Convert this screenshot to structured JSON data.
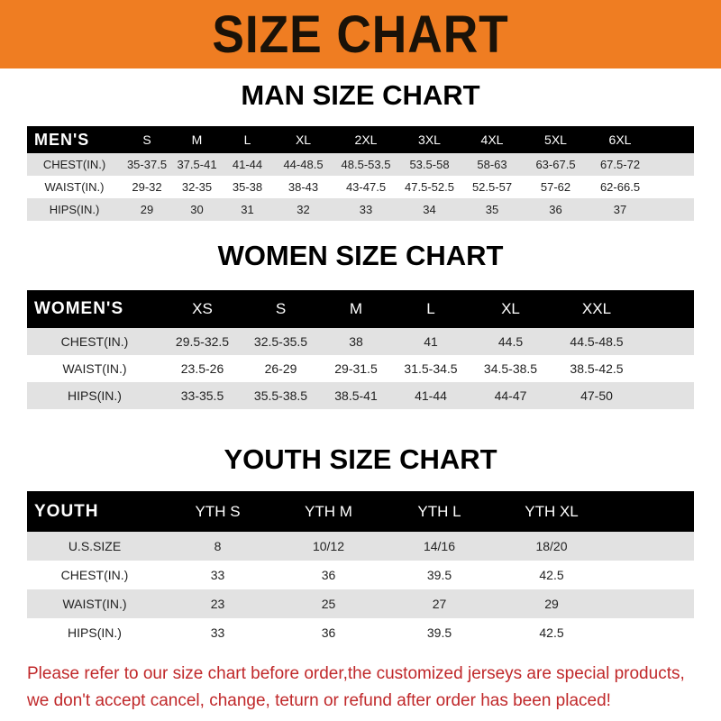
{
  "banner": {
    "title": "SIZE CHART"
  },
  "men": {
    "title": "MAN SIZE CHART",
    "header": [
      "MEN'S",
      "S",
      "M",
      "L",
      "XL",
      "2XL",
      "3XL",
      "4XL",
      "5XL",
      "6XL"
    ],
    "rows": [
      [
        "CHEST(IN.)",
        "35-37.5",
        "37.5-41",
        "41-44",
        "44-48.5",
        "48.5-53.5",
        "53.5-58",
        "58-63",
        "63-67.5",
        "67.5-72"
      ],
      [
        "WAIST(IN.)",
        "29-32",
        "32-35",
        "35-38",
        "38-43",
        "43-47.5",
        "47.5-52.5",
        "52.5-57",
        "57-62",
        "62-66.5"
      ],
      [
        "HIPS(IN.)",
        "29",
        "30",
        "31",
        "32",
        "33",
        "34",
        "35",
        "36",
        "37"
      ]
    ]
  },
  "women": {
    "title": "WOMEN SIZE CHART",
    "header": [
      "WOMEN'S",
      "XS",
      "S",
      "M",
      "L",
      "XL",
      "XXL"
    ],
    "rows": [
      [
        "CHEST(IN.)",
        "29.5-32.5",
        "32.5-35.5",
        "38",
        "41",
        "44.5",
        "44.5-48.5"
      ],
      [
        "WAIST(IN.)",
        "23.5-26",
        "26-29",
        "29-31.5",
        "31.5-34.5",
        "34.5-38.5",
        "38.5-42.5"
      ],
      [
        "HIPS(IN.)",
        "33-35.5",
        "35.5-38.5",
        "38.5-41",
        "41-44",
        "44-47",
        "47-50"
      ]
    ]
  },
  "youth": {
    "title": "YOUTH SIZE CHART",
    "header": [
      "YOUTH",
      "YTH S",
      "YTH M",
      "YTH L",
      "YTH XL"
    ],
    "rows": [
      [
        "U.S.SIZE",
        "8",
        "10/12",
        "14/16",
        "18/20"
      ],
      [
        "CHEST(IN.)",
        "33",
        "36",
        "39.5",
        "42.5"
      ],
      [
        "WAIST(IN.)",
        "23",
        "25",
        "27",
        "29"
      ],
      [
        "HIPS(IN.)",
        "33",
        "36",
        "39.5",
        "42.5"
      ]
    ]
  },
  "notice": {
    "line1": "Please refer to our size chart before order,the customized jerseys are special products,",
    "line2": "we don't accept cancel, change, teturn or refund after order has been placed!"
  },
  "colors": {
    "banner": "#ef7d22",
    "header_row": "#000000",
    "stripe": "#e2e2e2",
    "notice": "#c0282a"
  }
}
